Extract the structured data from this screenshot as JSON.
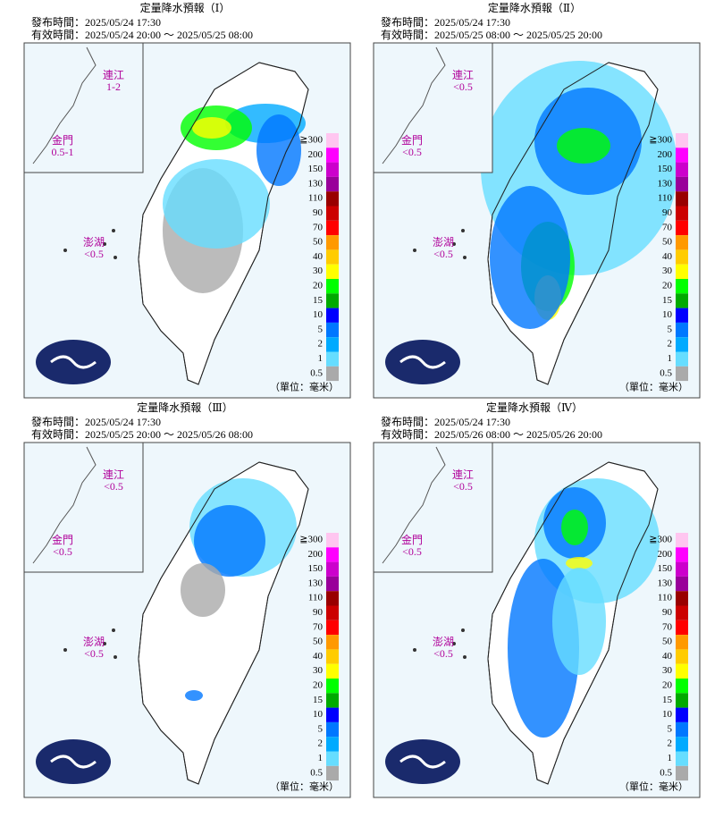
{
  "panels": [
    {
      "title": "定量降水預報（Ⅰ）",
      "issued": "發布時間：2025/05/24 17:30",
      "valid": "有效時間：2025/05/24 20:00 ～ 2025/05/25 08:00",
      "insets": [
        {
          "name": "連江",
          "value": "1-2"
        },
        {
          "name": "金門",
          "value": "0.5-1"
        },
        {
          "name": "澎湖",
          "value": "<0.5"
        }
      ],
      "unit": "（單位：毫米）"
    },
    {
      "title": "定量降水預報（Ⅱ）",
      "issued": "發布時間：2025/05/24 17:30",
      "valid": "有效時間：2025/05/25 08:00 ～ 2025/05/25 20:00",
      "insets": [
        {
          "name": "連江",
          "value": "<0.5"
        },
        {
          "name": "金門",
          "value": "<0.5"
        },
        {
          "name": "澎湖",
          "value": "<0.5"
        }
      ],
      "unit": "（單位：毫米）"
    },
    {
      "title": "定量降水預報（Ⅲ）",
      "issued": "發布時間：2025/05/24 17:30",
      "valid": "有效時間：2025/05/25 20:00 ～ 2025/05/26 08:00",
      "insets": [
        {
          "name": "連江",
          "value": "<0.5"
        },
        {
          "name": "金門",
          "value": "<0.5"
        },
        {
          "name": "澎湖",
          "value": "<0.5"
        }
      ],
      "unit": "（單位：毫米）"
    },
    {
      "title": "定量降水預報（Ⅳ）",
      "issued": "發布時間：2025/05/24 17:30",
      "valid": "有效時間：2025/05/26 08:00 ～ 2025/05/26 20:00",
      "insets": [
        {
          "name": "連江",
          "value": "<0.5"
        },
        {
          "name": "金門",
          "value": "<0.5"
        },
        {
          "name": "澎湖",
          "value": "<0.5"
        }
      ],
      "unit": "（單位：毫米）"
    }
  ],
  "legend": {
    "labels": [
      "≧300",
      "200",
      "150",
      "130",
      "110",
      "90",
      "70",
      "50",
      "40",
      "30",
      "20",
      "15",
      "10",
      "5",
      "2",
      "1",
      "0.5"
    ],
    "colors": [
      "#ffc6f0",
      "#ff00ff",
      "#cc00cc",
      "#99009a",
      "#990000",
      "#cc0000",
      "#ff0000",
      "#ff9900",
      "#ffcc00",
      "#ffff00",
      "#00ff00",
      "#00aa00",
      "#0000ff",
      "#0077ff",
      "#00aaff",
      "#66ddff",
      "#aaaaaa"
    ]
  }
}
